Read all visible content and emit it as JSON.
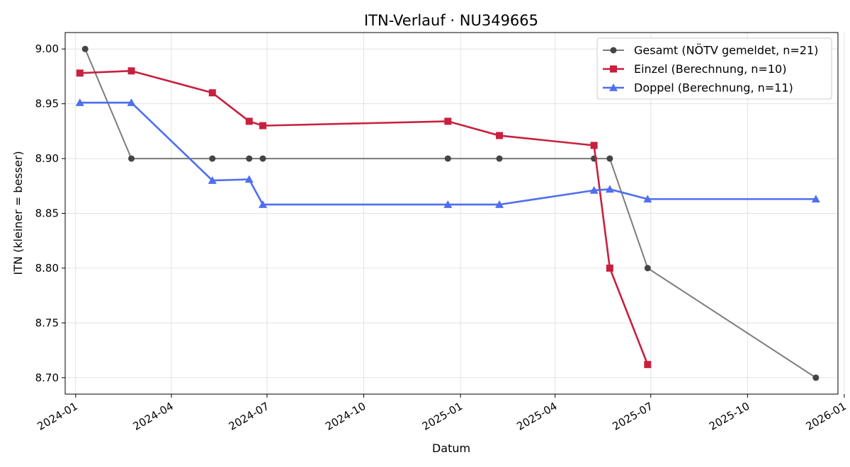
{
  "chart_data": {
    "type": "line",
    "title": "ITN-Verlauf · NU349665",
    "xlabel": "Datum",
    "ylabel": "ITN  (kleiner = besser)",
    "x_axis_type": "date",
    "xlim": [
      "2023-12-22",
      "2025-12-26"
    ],
    "ylim": [
      8.685,
      9.015
    ],
    "x_ticks": [
      "2024-01-01",
      "2024-04-01",
      "2024-07-01",
      "2024-10-01",
      "2025-01-01",
      "2025-04-01",
      "2025-07-01",
      "2025-10-01",
      "2026-01-01"
    ],
    "x_tick_labels": [
      "2024-01",
      "2024-04",
      "2024-07",
      "2024-10",
      "2025-01",
      "2025-04",
      "2025-07",
      "2025-10",
      "2026-01"
    ],
    "y_ticks": [
      8.7,
      8.75,
      8.8,
      8.85,
      8.9,
      8.95,
      9.0
    ],
    "y_tick_labels": [
      "8.70",
      "8.75",
      "8.80",
      "8.85",
      "8.90",
      "8.95",
      "9.00"
    ],
    "grid": true,
    "legend_position": "top-right",
    "series": [
      {
        "name": "Gesamt (NÖTV gemeldet, n=21)",
        "color": "#444444",
        "marker": "circle",
        "points": [
          [
            "2024-01-10",
            9.0
          ],
          [
            "2024-02-23",
            8.9
          ],
          [
            "2024-05-10",
            8.9
          ],
          [
            "2024-06-14",
            8.9
          ],
          [
            "2024-06-27",
            8.9
          ],
          [
            "2024-12-20",
            8.9
          ],
          [
            "2025-02-07",
            8.9
          ],
          [
            "2025-05-08",
            8.9
          ],
          [
            "2025-05-23",
            8.9
          ],
          [
            "2025-06-28",
            8.8
          ],
          [
            "2025-12-05",
            8.7
          ]
        ]
      },
      {
        "name": "Einzel (Berechnung, n=10)",
        "color": "#c8203e",
        "marker": "square",
        "points": [
          [
            "2024-01-05",
            8.978
          ],
          [
            "2024-02-23",
            8.98
          ],
          [
            "2024-05-10",
            8.96
          ],
          [
            "2024-06-14",
            8.934
          ],
          [
            "2024-06-27",
            8.93
          ],
          [
            "2024-12-20",
            8.934
          ],
          [
            "2025-02-07",
            8.921
          ],
          [
            "2025-05-08",
            8.912
          ],
          [
            "2025-05-23",
            8.8
          ],
          [
            "2025-06-28",
            8.712
          ]
        ]
      },
      {
        "name": "Doppel (Berechnung, n=11)",
        "color": "#4f6ef0",
        "marker": "triangle",
        "points": [
          [
            "2024-01-05",
            8.951
          ],
          [
            "2024-02-23",
            8.951
          ],
          [
            "2024-05-10",
            8.88
          ],
          [
            "2024-06-14",
            8.881
          ],
          [
            "2024-06-27",
            8.858
          ],
          [
            "2024-12-20",
            8.858
          ],
          [
            "2025-02-07",
            8.858
          ],
          [
            "2025-05-08",
            8.871
          ],
          [
            "2025-05-23",
            8.872
          ],
          [
            "2025-06-28",
            8.863
          ],
          [
            "2025-12-05",
            8.863
          ]
        ]
      }
    ]
  }
}
